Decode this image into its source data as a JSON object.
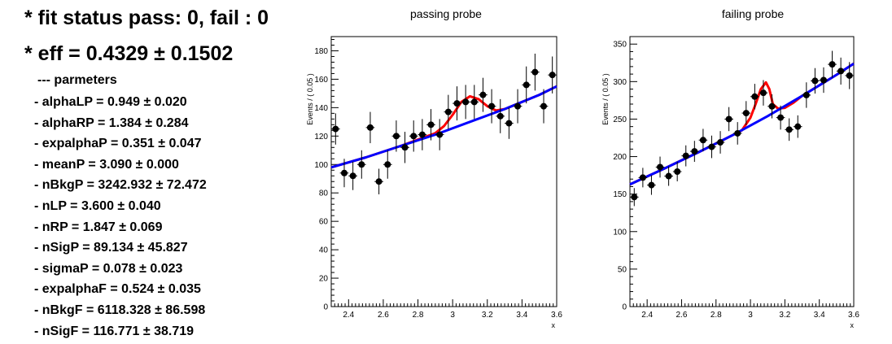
{
  "summary": {
    "status_text": "* fit status pass: 0, fail : 0",
    "eff_text": "* eff = 0.4329  ± 0.1502",
    "params_title": "--- parmeters",
    "params": [
      "- alphaLP = 0.949 ± 0.020",
      "- alphaRP = 1.384 ± 0.284",
      "- expalphaP = 0.351 ± 0.047",
      "- meanP = 3.090 ± 0.000",
      "- nBkgP = 3242.932 ± 72.472",
      "- nLP = 3.600 ± 0.040",
      "- nRP = 1.847 ± 0.069",
      "- nSigP = 89.134 ± 45.827",
      "- sigmaP = 0.078 ± 0.023",
      "- expalphaF = 0.524 ± 0.035",
      "- nBkgF = 6118.328 ± 86.598",
      "- nSigF = 116.771 ± 38.719"
    ]
  },
  "colors": {
    "points": "#000000",
    "total_fit": "#ff0000",
    "background_fit": "#0000ff"
  },
  "chart_data": [
    {
      "type": "scatter",
      "title": "passing probe",
      "xlabel": "x",
      "ylabel": "Events / ( 0.05 )",
      "xlim": [
        2.3,
        3.6
      ],
      "ylim": [
        0,
        190
      ],
      "xticks": [
        "2.4",
        "2.6",
        "2.8",
        "3",
        "3.2",
        "3.4",
        "3.6"
      ],
      "yticks": [
        "0",
        "20",
        "40",
        "60",
        "80",
        "100",
        "120",
        "140",
        "160",
        "180"
      ],
      "grid": false,
      "legend": "none",
      "x": [
        2.325,
        2.375,
        2.425,
        2.475,
        2.525,
        2.575,
        2.625,
        2.675,
        2.725,
        2.775,
        2.825,
        2.875,
        2.925,
        2.975,
        3.025,
        3.075,
        3.125,
        3.175,
        3.225,
        3.275,
        3.325,
        3.375,
        3.425,
        3.475,
        3.525,
        3.575
      ],
      "y": [
        125,
        94,
        92,
        100,
        126,
        88,
        100,
        120,
        112,
        120,
        121,
        128,
        121,
        137,
        143,
        144,
        144,
        149,
        141,
        134,
        129,
        141,
        156,
        165,
        141,
        163
      ],
      "yerr": [
        11,
        10,
        10,
        10,
        11,
        9,
        10,
        11,
        11,
        11,
        11,
        11,
        11,
        12,
        12,
        12,
        12,
        12,
        12,
        12,
        11,
        12,
        13,
        13,
        12,
        13
      ],
      "bkg_curve": {
        "x": [
          2.3,
          2.5,
          2.7,
          2.9,
          3.1,
          3.3,
          3.5,
          3.6
        ],
        "y": [
          98,
          105,
          113,
          121,
          130,
          139,
          149,
          155
        ]
      },
      "total_curve": {
        "x": [
          2.3,
          2.5,
          2.7,
          2.9,
          2.95,
          3.0,
          3.05,
          3.1,
          3.15,
          3.2,
          3.25,
          3.3,
          3.5,
          3.6
        ],
        "y": [
          98,
          105,
          113,
          122,
          127,
          135,
          144,
          148,
          146,
          141,
          138,
          139,
          149,
          155
        ]
      }
    },
    {
      "type": "scatter",
      "title": "failing probe",
      "xlabel": "x",
      "ylabel": "Events / ( 0.05 )",
      "xlim": [
        2.3,
        3.6
      ],
      "ylim": [
        0,
        360
      ],
      "xticks": [
        "2.4",
        "2.6",
        "2.8",
        "3",
        "3.2",
        "3.4",
        "3.6"
      ],
      "yticks": [
        "0",
        "50",
        "100",
        "150",
        "200",
        "250",
        "300",
        "350"
      ],
      "grid": false,
      "legend": "none",
      "x": [
        2.325,
        2.375,
        2.425,
        2.475,
        2.525,
        2.575,
        2.625,
        2.675,
        2.725,
        2.775,
        2.825,
        2.875,
        2.925,
        2.975,
        3.025,
        3.075,
        3.125,
        3.175,
        3.225,
        3.275,
        3.325,
        3.375,
        3.425,
        3.475,
        3.525,
        3.575
      ],
      "y": [
        146,
        172,
        162,
        186,
        174,
        180,
        201,
        207,
        222,
        213,
        219,
        250,
        231,
        258,
        280,
        285,
        267,
        252,
        236,
        240,
        282,
        301,
        302,
        323,
        314,
        308
      ],
      "yerr": [
        12,
        13,
        13,
        14,
        13,
        13,
        14,
        14,
        15,
        15,
        15,
        16,
        15,
        16,
        17,
        17,
        16,
        16,
        15,
        15,
        17,
        17,
        17,
        18,
        18,
        18
      ],
      "bkg_curve": {
        "x": [
          2.3,
          2.5,
          2.7,
          2.9,
          3.1,
          3.3,
          3.5,
          3.6
        ],
        "y": [
          163,
          184,
          206,
          229,
          254,
          281,
          309,
          324
        ]
      },
      "total_curve": {
        "x": [
          2.3,
          2.5,
          2.7,
          2.9,
          2.95,
          3.0,
          3.03,
          3.06,
          3.09,
          3.11,
          3.13,
          3.16,
          3.2,
          3.25,
          3.3,
          3.5,
          3.6
        ],
        "y": [
          163,
          184,
          206,
          229,
          235,
          252,
          270,
          290,
          299,
          290,
          270,
          264,
          265,
          272,
          281,
          309,
          324
        ]
      }
    }
  ]
}
